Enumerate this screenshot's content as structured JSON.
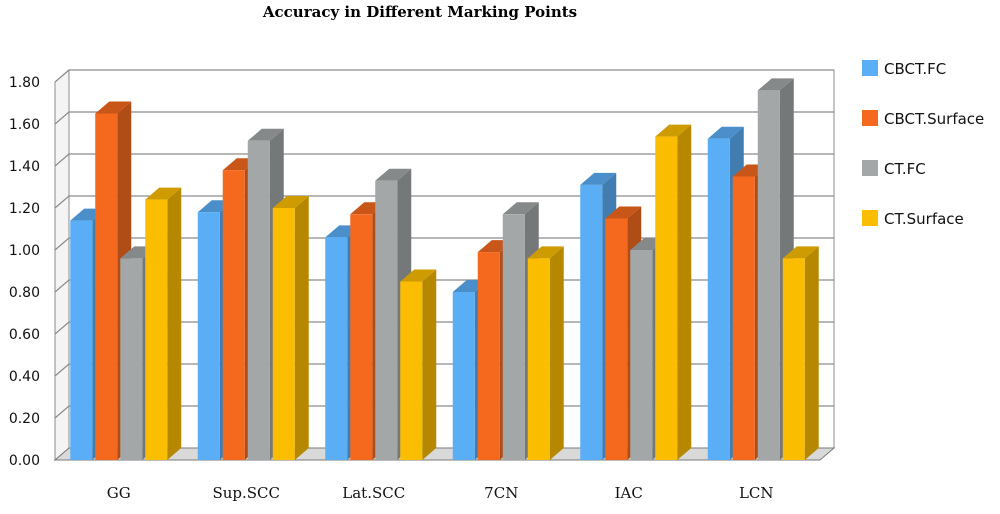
{
  "chart_data": {
    "type": "bar",
    "title": "Accuracy in Different Marking Points",
    "categories": [
      "GG",
      "Sup.SCC",
      "Lat.SCC",
      "7CN",
      "IAC",
      "LCN"
    ],
    "series": [
      {
        "name": "CBCT.FC",
        "color": "#5aaef5",
        "values": [
          1.14,
          1.18,
          1.06,
          0.8,
          1.31,
          1.53
        ]
      },
      {
        "name": "CBCT.Surface",
        "color": "#f5691f",
        "values": [
          1.65,
          1.38,
          1.17,
          0.99,
          1.15,
          1.35
        ]
      },
      {
        "name": "CT.FC",
        "color": "#a3a7a7",
        "values": [
          0.96,
          1.52,
          1.33,
          1.17,
          1.0,
          1.76
        ]
      },
      {
        "name": "CT.Surface",
        "color": "#fbbd00",
        "values": [
          1.24,
          1.2,
          0.85,
          0.96,
          1.54,
          0.96
        ]
      }
    ],
    "ylim": [
      0,
      1.8
    ],
    "yticks": [
      "0.00",
      "0.20",
      "0.40",
      "0.60",
      "0.80",
      "1.00",
      "1.20",
      "1.40",
      "1.60",
      "1.80"
    ],
    "grid": true,
    "legend": "right"
  }
}
